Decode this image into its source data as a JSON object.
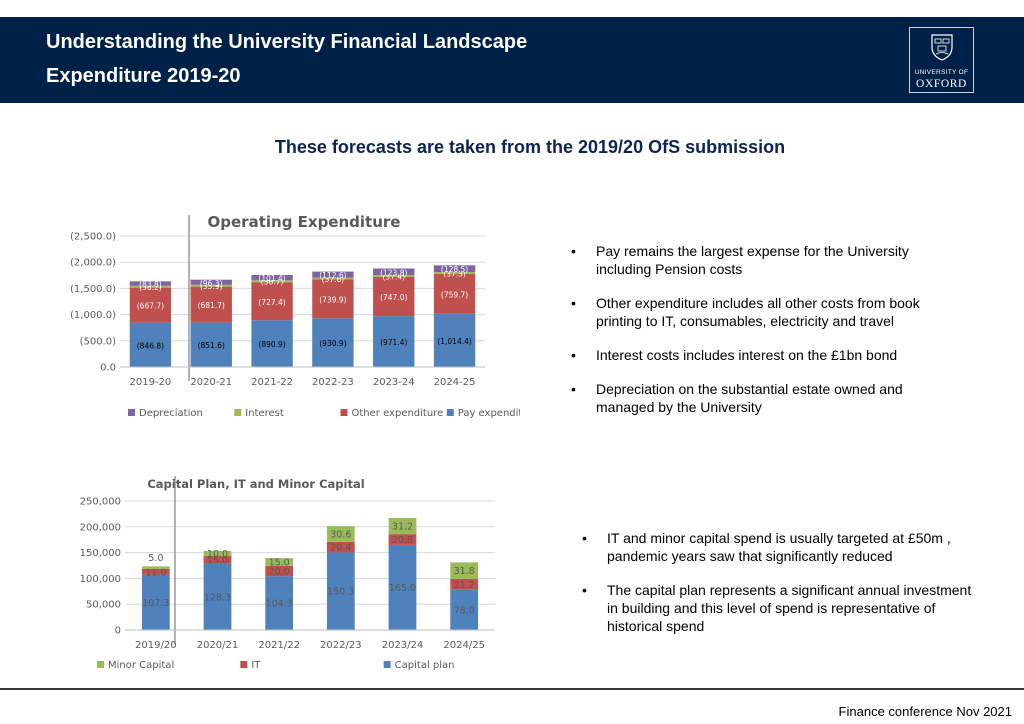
{
  "header": {
    "title_line1": "Understanding the University Financial Landscape",
    "title_line2": "Expenditure 2019-20",
    "logo_university_of": "UNIVERSITY OF",
    "logo_oxford": "OXFORD"
  },
  "subtitle": "These forecasts are taken from the 2019/20 OfS submission",
  "bullets_top": [
    "Pay remains the largest expense for the University including Pension costs",
    "Other expenditure includes all other costs from book printing to IT, consumables, electricity and travel",
    "Interest costs includes interest on the £1bn bond",
    "Depreciation on the substantial estate owned and managed by the University"
  ],
  "bullets_bottom": [
    "IT  and minor capital spend is usually targeted at £50m , pandemic years saw that significantly reduced",
    "The capital plan represents a significant annual investment in building and this level of spend is representative of historical  spend"
  ],
  "footer": "Finance conference Nov 2021",
  "bullet_char": "•",
  "chart_data": [
    {
      "type": "bar",
      "stacked": true,
      "title": "Operating Expenditure",
      "categories": [
        "2019-20",
        "2020-21",
        "2021-22",
        "2022-23",
        "2023-24",
        "2024-25"
      ],
      "y_ticks": [
        "(2,500.0)",
        "(2,000.0)",
        "(1,500.0)",
        "(1,000.0)",
        "(500.0)",
        "0.0"
      ],
      "ylim": [
        0,
        2500
      ],
      "grid": true,
      "legend_position": "bottom",
      "series": [
        {
          "name": "Pay expenditure",
          "color": "#4f81bd",
          "values": [
            846.8,
            851.6,
            890.9,
            930.9,
            971.4,
            1014.4
          ],
          "labels": [
            "(846.8)",
            "(851.6)",
            "(890.9)",
            "(930.9)",
            "(971.4)",
            "(1,014.4)"
          ]
        },
        {
          "name": "Other expenditure",
          "color": "#c0504d",
          "values": [
            667.7,
            681.7,
            727.4,
            739.9,
            747.0,
            759.7
          ],
          "labels": [
            "(667.7)",
            "(681.7)",
            "(727.4)",
            "(739.9)",
            "(747.0)",
            "(759.7)"
          ]
        },
        {
          "name": "Interest",
          "color": "#9bbb59",
          "values": [
            36.2,
            35.9,
            36.7,
            37.6,
            37.4,
            37.3
          ],
          "labels": [
            "(36.2)",
            "(35.9)",
            "(36.7)",
            "(37.6)",
            "(37.4)",
            "(37.3)"
          ]
        },
        {
          "name": "Depreciation",
          "color": "#8064a2",
          "values": [
            83.8,
            96.3,
            101.4,
            112.6,
            123.8,
            128.5
          ],
          "labels": [
            "(83.8)",
            "(96.3)",
            "(101.4)",
            "(112.6)",
            "(123.8)",
            "(128.5)"
          ]
        }
      ],
      "legend_order": [
        "Depreciation",
        "Interest",
        "Other expenditure",
        "Pay expenditure"
      ]
    },
    {
      "type": "bar",
      "stacked": true,
      "title": "Capital Plan, IT and Minor Capital",
      "categories": [
        "2019/20",
        "2020/21",
        "2021/22",
        "2022/23",
        "2023/24",
        "2024/25"
      ],
      "y_ticks": [
        "250,000",
        "200,000",
        "150,000",
        "100,000",
        "50,000",
        "0"
      ],
      "ylim": [
        0,
        250
      ],
      "grid": true,
      "legend_position": "bottom",
      "series": [
        {
          "name": "Capital plan",
          "color": "#4f81bd",
          "values": [
            107.3,
            128.3,
            104.3,
            150.3,
            165.0,
            78.0
          ],
          "labels": [
            "107.3",
            "128.3",
            "104.3",
            "150.3",
            "165.0",
            "78.0"
          ]
        },
        {
          "name": "IT",
          "color": "#c0504d",
          "values": [
            11.0,
            15.0,
            20.0,
            20.4,
            20.8,
            21.2
          ],
          "labels": [
            "11.0",
            "15.0",
            "20.0",
            "20.4",
            "20.8",
            "21.2"
          ]
        },
        {
          "name": "Minor Capital",
          "color": "#9bbb59",
          "values": [
            5.0,
            10.0,
            15.0,
            30.6,
            31.2,
            31.8
          ],
          "labels": [
            "5.0",
            "10.0",
            "15.0",
            "30.6",
            "31.2",
            "31.8"
          ]
        }
      ],
      "legend_order": [
        "Minor Capital",
        "IT",
        "Capital plan"
      ]
    }
  ]
}
